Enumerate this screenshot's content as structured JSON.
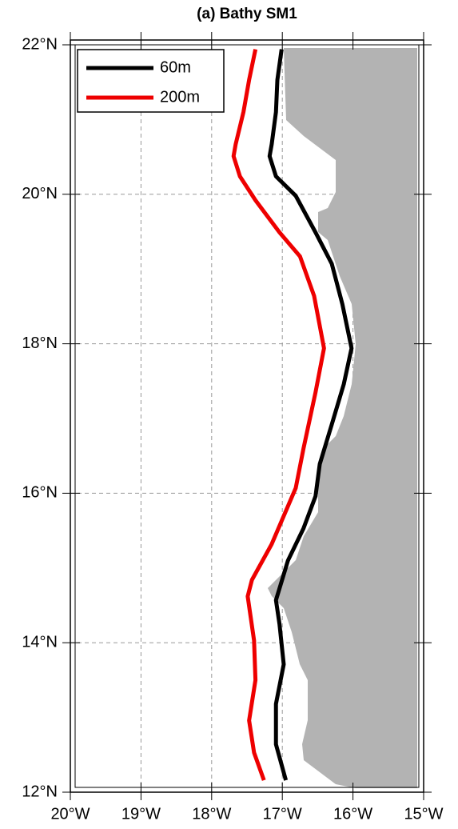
{
  "chart_data": {
    "type": "line",
    "title": "(a) Bathy SM1",
    "xlim": [
      -20,
      -15
    ],
    "xticks": [
      {
        "value": -20,
        "label": "20°W"
      },
      {
        "value": -19,
        "label": "19°W"
      },
      {
        "value": -18,
        "label": "18°W"
      },
      {
        "value": -17,
        "label": "17°W"
      },
      {
        "value": -16,
        "label": "16°W"
      },
      {
        "value": -15,
        "label": "15°W"
      }
    ],
    "ylim": [
      12,
      22
    ],
    "yticks": [
      {
        "value": 12,
        "label": "12°N"
      },
      {
        "value": 14,
        "label": "14°N"
      },
      {
        "value": 16,
        "label": "16°N"
      },
      {
        "value": 18,
        "label": "18°N"
      },
      {
        "value": 20,
        "label": "20°N"
      },
      {
        "value": 22,
        "label": "22°N"
      }
    ],
    "grid": true,
    "legend": "upper-left",
    "series": [
      {
        "name": "60m",
        "color": "#000000",
        "x": [
          -17.01,
          -17.07,
          -17.09,
          -17.15,
          -17.18,
          -17.09,
          -16.81,
          -16.53,
          -16.3,
          -16.15,
          -16.02,
          -16.13,
          -16.3,
          -16.47,
          -16.53,
          -16.7,
          -16.92,
          -17.09,
          -17.04,
          -16.98,
          -17.09,
          -17.09,
          -16.95
        ],
        "values": [
          21.94,
          21.53,
          21.1,
          20.67,
          20.51,
          20.24,
          19.98,
          19.49,
          19.07,
          18.53,
          17.94,
          17.46,
          16.92,
          16.39,
          15.96,
          15.53,
          15.1,
          14.57,
          14.25,
          13.71,
          13.18,
          12.64,
          12.16
        ]
      },
      {
        "name": "200m",
        "color": "#ee0000",
        "x": [
          -17.38,
          -17.47,
          -17.55,
          -17.66,
          -17.69,
          -17.6,
          -17.38,
          -17.04,
          -16.75,
          -16.55,
          -16.41,
          -16.53,
          -16.7,
          -16.81,
          -17.15,
          -17.43,
          -17.49,
          -17.4,
          -17.38,
          -17.47,
          -17.4,
          -17.26
        ],
        "values": [
          21.94,
          21.53,
          21.1,
          20.67,
          20.51,
          20.24,
          19.92,
          19.49,
          19.17,
          18.64,
          17.94,
          17.35,
          16.6,
          16.07,
          15.32,
          14.84,
          14.62,
          14.03,
          13.5,
          12.96,
          12.53,
          12.16
        ]
      }
    ]
  }
}
